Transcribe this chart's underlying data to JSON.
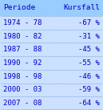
{
  "header": [
    "Periode",
    "Kursfall"
  ],
  "rows": [
    [
      "1974 - 78",
      "-67 %"
    ],
    [
      "1980 - 82",
      "-31 %"
    ],
    [
      "1987 - 88",
      "-45 %"
    ],
    [
      "1990 - 92",
      "-55 %"
    ],
    [
      "1998 - 98",
      "-46 %"
    ],
    [
      "2000 - 03",
      "-59 %"
    ],
    [
      "2007 - 08",
      "-64 %"
    ]
  ],
  "header_bg": "#99ccff",
  "row_bg": "#cce0ff",
  "text_color": "#0000cc",
  "dot_color": "#6699cc",
  "font_size": 6.5,
  "header_font_size": 6.8,
  "fig_width": 1.29,
  "fig_height": 1.37,
  "dpi": 100
}
